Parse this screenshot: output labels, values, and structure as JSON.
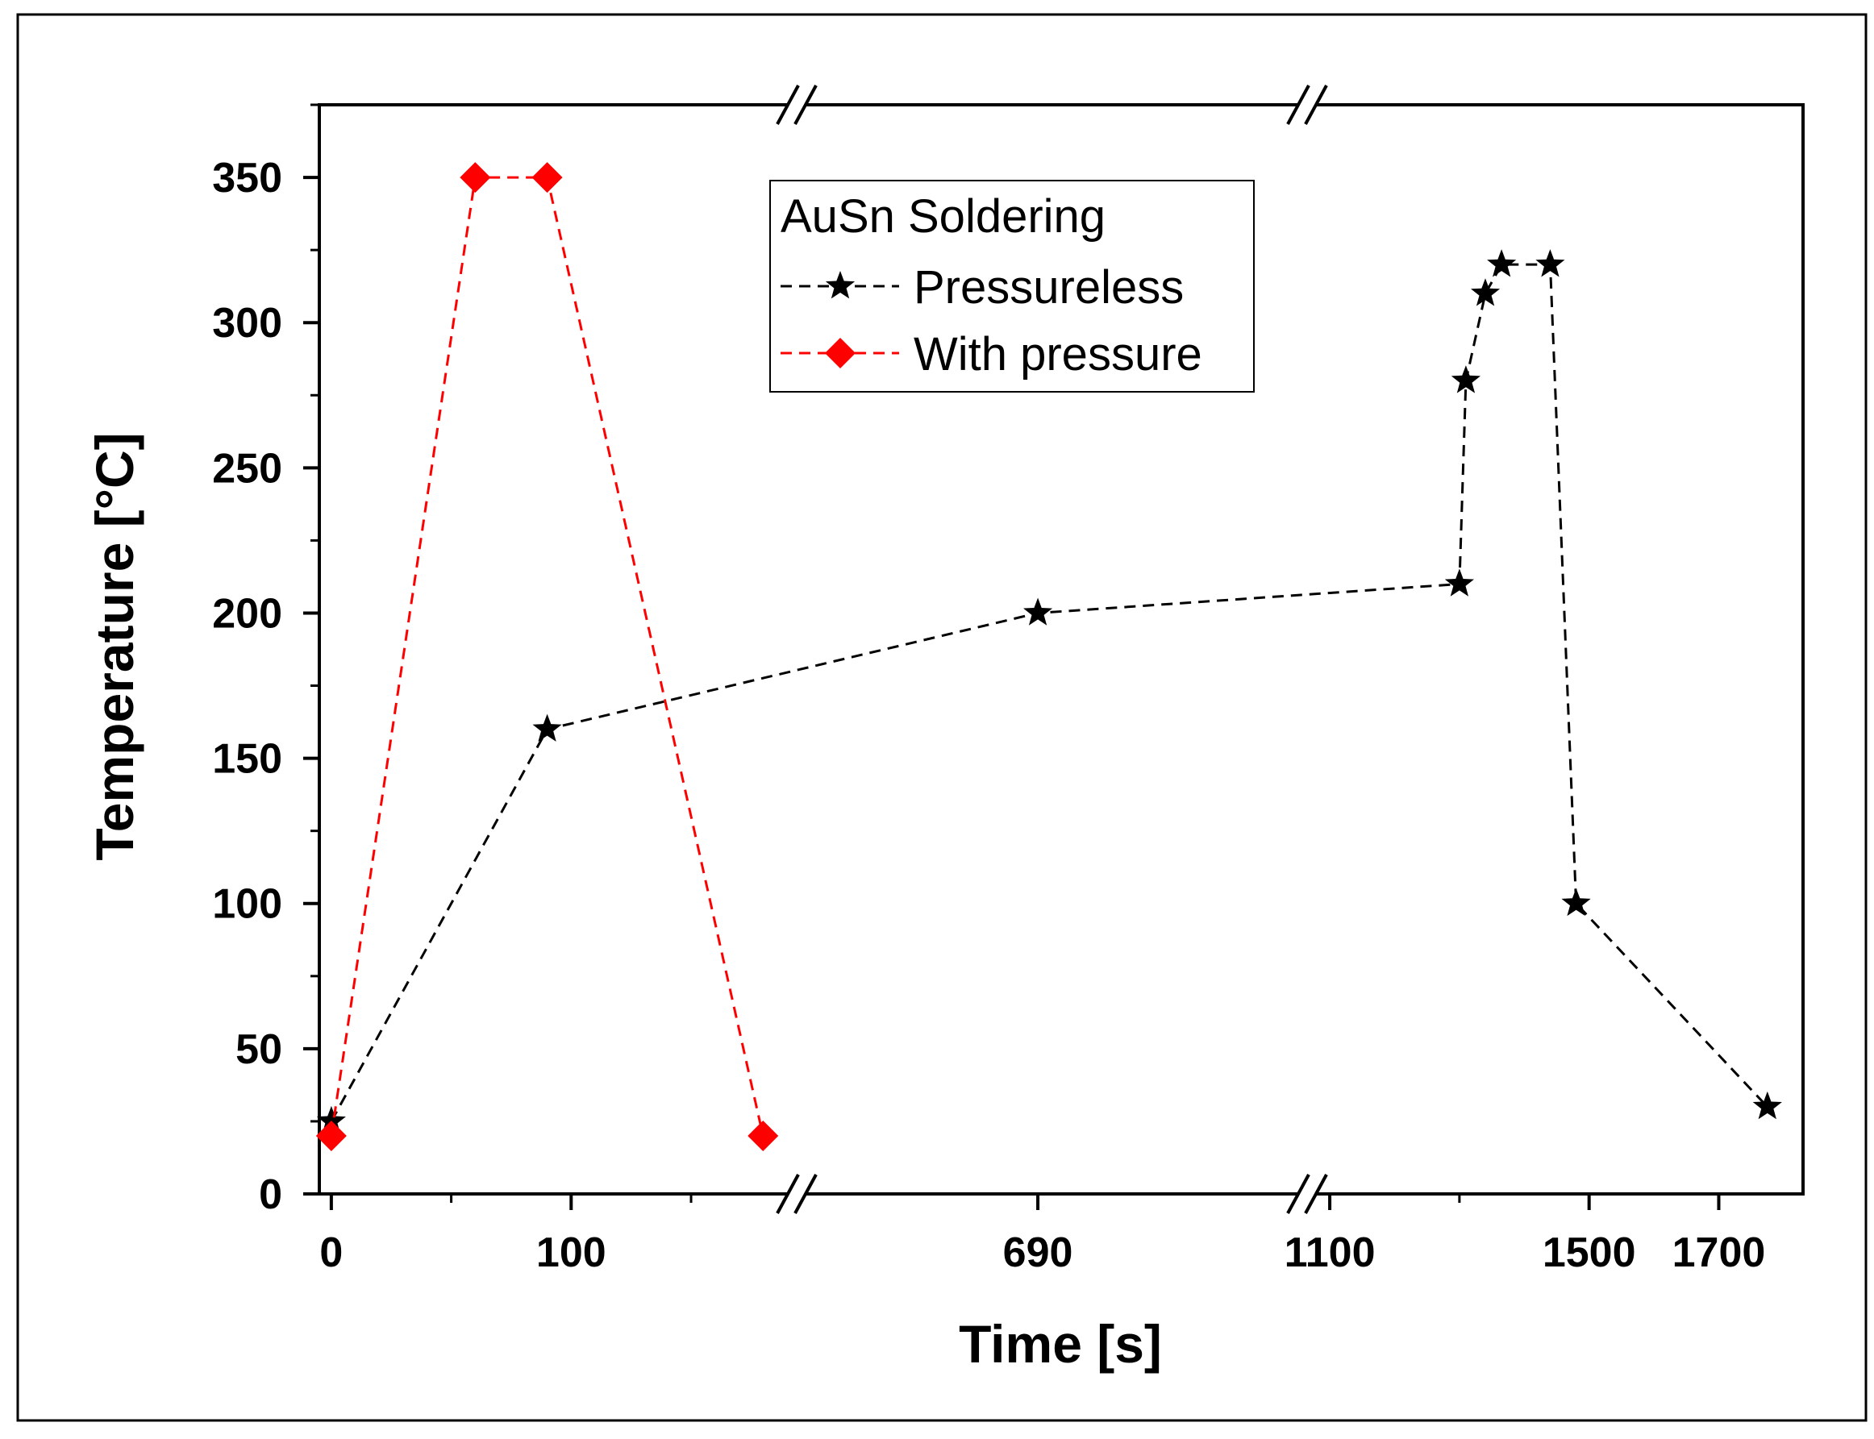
{
  "chart_data": {
    "type": "line",
    "xlabel": "Time [s]",
    "ylabel": "Temperature [°C]",
    "ylim": [
      0,
      375
    ],
    "x_axis": {
      "broken": true,
      "segments": [
        {
          "range": [
            -5,
            190
          ],
          "ticks": [
            0,
            100
          ],
          "minor_ticks": [
            50,
            150
          ]
        },
        {
          "range": [
            530,
            870
          ],
          "ticks": [
            690
          ],
          "minor_ticks": []
        },
        {
          "range": [
            1080,
            1830
          ],
          "ticks": [
            1100,
            1500,
            1700
          ],
          "minor_ticks": [
            1300
          ]
        }
      ],
      "tick_labels": [
        "0",
        "100",
        "690",
        "1100",
        "1500",
        "1700"
      ]
    },
    "y_ticks": [
      0,
      50,
      100,
      150,
      200,
      250,
      300,
      350
    ],
    "y_tick_labels": [
      "0",
      "50",
      "100",
      "150",
      "200",
      "250",
      "300",
      "350"
    ],
    "legend": {
      "title": "AuSn Soldering",
      "position": "top-center",
      "entries": [
        "Pressureless",
        "With pressure"
      ]
    },
    "grid": false,
    "series": [
      {
        "name": "Pressureless",
        "color": "#000000",
        "marker": "star",
        "line_style": "dashed",
        "points": [
          {
            "x": 0,
            "y": 25
          },
          {
            "x": 90,
            "y": 160
          },
          {
            "x": 690,
            "y": 200
          },
          {
            "x": 1300,
            "y": 210
          },
          {
            "x": 1310,
            "y": 280
          },
          {
            "x": 1340,
            "y": 310
          },
          {
            "x": 1365,
            "y": 320
          },
          {
            "x": 1440,
            "y": 320
          },
          {
            "x": 1480,
            "y": 100
          },
          {
            "x": 1775,
            "y": 30
          }
        ]
      },
      {
        "name": "With pressure",
        "color": "#ff0000",
        "marker": "diamond",
        "line_style": "dashed",
        "points": [
          {
            "x": 0,
            "y": 20
          },
          {
            "x": 60,
            "y": 350
          },
          {
            "x": 90,
            "y": 350
          },
          {
            "x": 180,
            "y": 20
          }
        ]
      }
    ]
  }
}
